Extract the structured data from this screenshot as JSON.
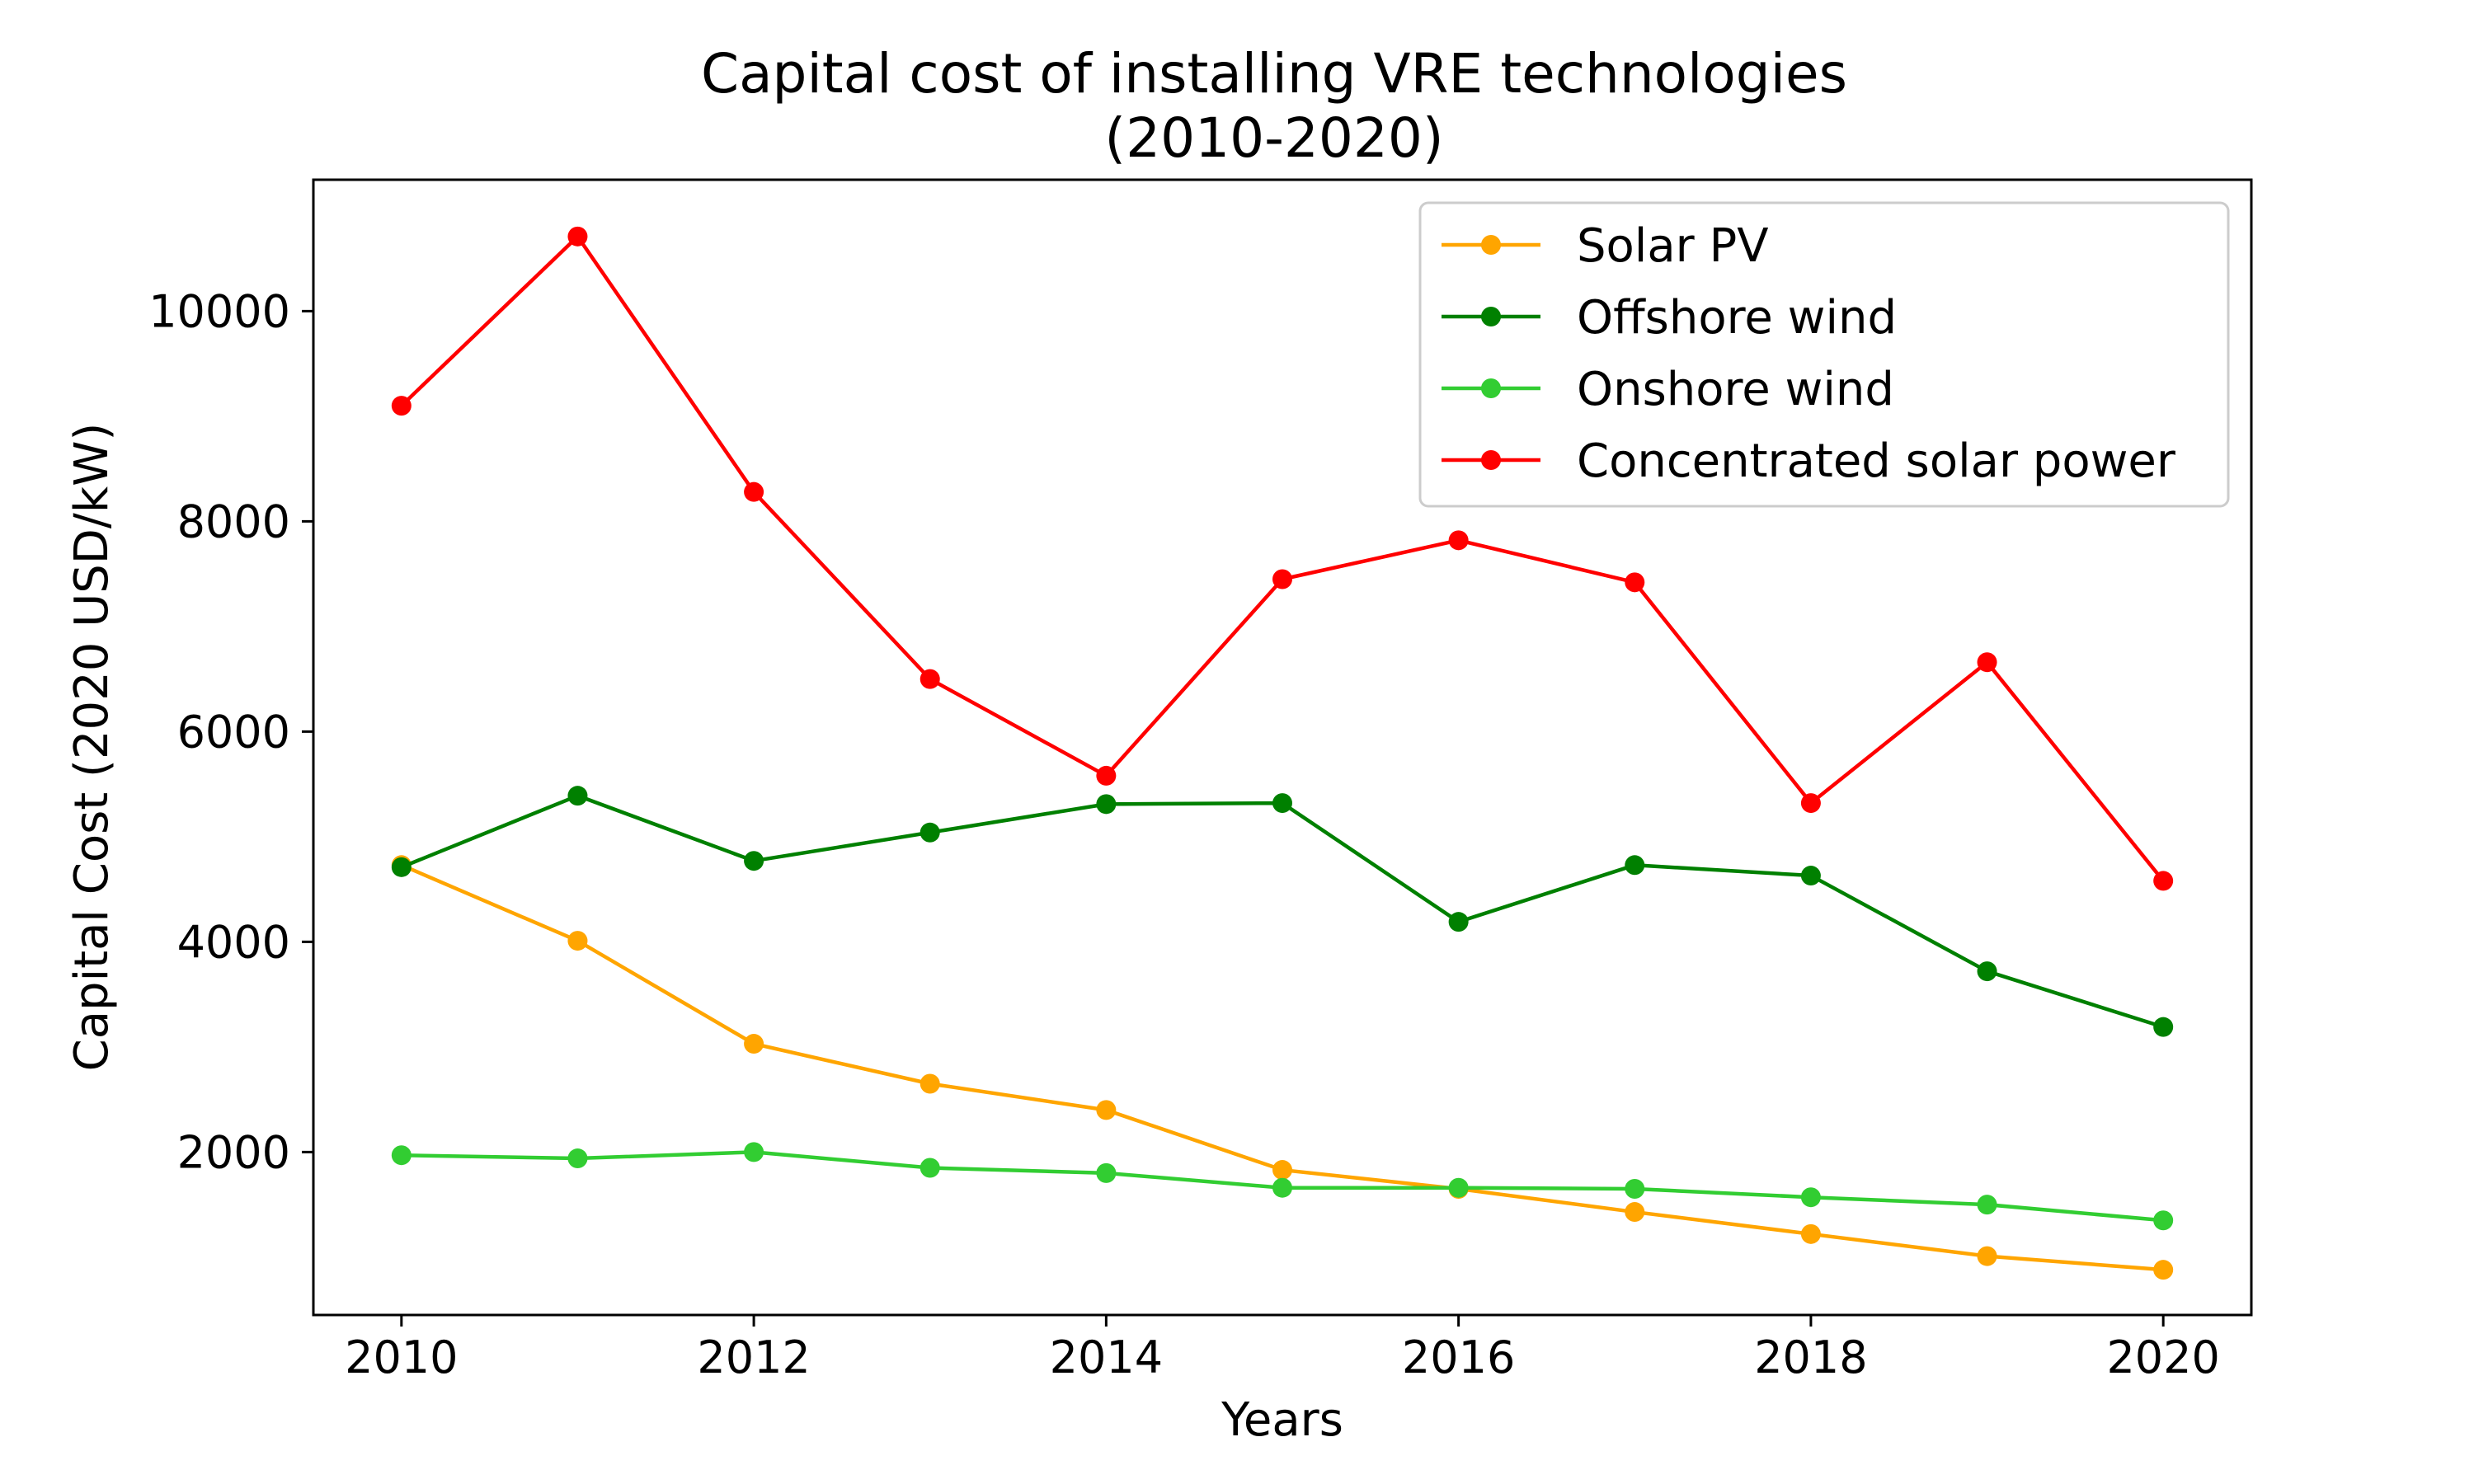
{
  "chart_data": {
    "type": "line",
    "title_line1": "Capital cost of installing VRE technologies",
    "title_line2": "(2010-2020)",
    "xlabel": "Years",
    "ylabel": "Capital Cost (2020 USD/kW)",
    "x": [
      2010,
      2011,
      2012,
      2013,
      2014,
      2015,
      2016,
      2017,
      2018,
      2019,
      2020
    ],
    "xlim": [
      2009.5,
      2020.5
    ],
    "ylim": [
      450,
      11250
    ],
    "xticks": [
      2010,
      2012,
      2014,
      2016,
      2018,
      2020
    ],
    "yticks": [
      2000,
      4000,
      6000,
      8000,
      10000
    ],
    "grid": false,
    "legend_position": "top-right",
    "series": [
      {
        "name": "Solar PV",
        "color": "#ffa500",
        "values": [
          4730,
          4010,
          3030,
          2650,
          2400,
          1830,
          1650,
          1430,
          1220,
          1010,
          880
        ]
      },
      {
        "name": "Offshore wind",
        "color": "#008000",
        "values": [
          4710,
          5390,
          4770,
          5040,
          5310,
          5320,
          4190,
          4730,
          4630,
          3720,
          3190
        ]
      },
      {
        "name": "Onshore wind",
        "color": "#32cd32",
        "values": [
          1970,
          1940,
          2000,
          1850,
          1800,
          1660,
          1660,
          1650,
          1570,
          1500,
          1350
        ]
      },
      {
        "name": "Concentrated solar power",
        "color": "#ff0000",
        "values": [
          9100,
          10710,
          8280,
          6500,
          5580,
          7450,
          7820,
          7420,
          5320,
          6660,
          4580
        ]
      }
    ]
  }
}
